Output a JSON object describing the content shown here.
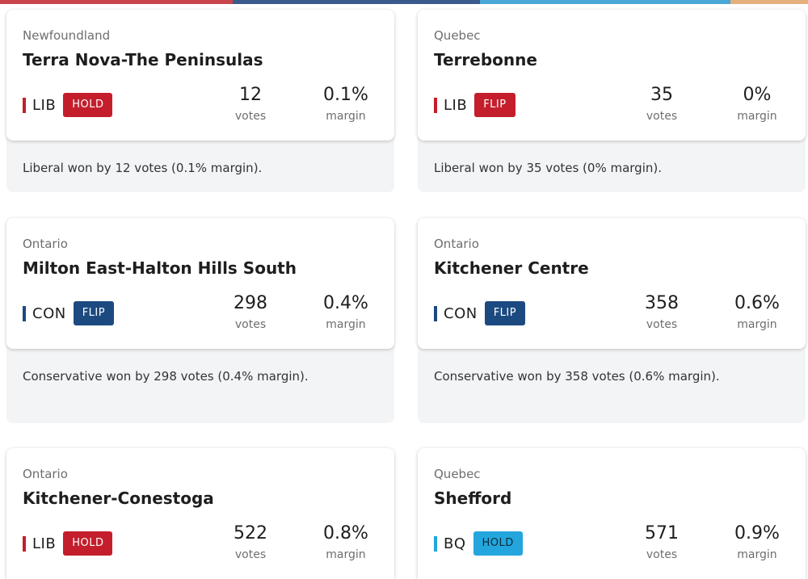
{
  "top_bar_colors": [
    "#c9434b",
    "#3a5a8c",
    "#48a7d6",
    "#e4b07d"
  ],
  "party_colors": {
    "LIB": "#c41e2c",
    "CON": "#1c4a80",
    "BQ": "#23a6dd"
  },
  "badge_text_colors": {
    "LIB": "#ffffff",
    "CON": "#ffffff",
    "BQ": "#0b2a3a"
  },
  "ridings": [
    {
      "province": "Newfoundland",
      "name": "Terra Nova-The Peninsulas",
      "party": "LIB",
      "status": "HOLD",
      "votes": "12",
      "votes_label": "votes",
      "margin": "0.1%",
      "margin_label": "margin",
      "summary": "Liberal won by 12 votes (0.1% margin)."
    },
    {
      "province": "Quebec",
      "name": "Terrebonne",
      "party": "LIB",
      "status": "FLIP",
      "votes": "35",
      "votes_label": "votes",
      "margin": "0%",
      "margin_label": "margin",
      "summary": "Liberal won by 35 votes (0% margin)."
    },
    {
      "province": "Ontario",
      "name": "Milton East-Halton Hills South",
      "party": "CON",
      "status": "FLIP",
      "votes": "298",
      "votes_label": "votes",
      "margin": "0.4%",
      "margin_label": "margin",
      "summary": "Conservative won by 298 votes (0.4% margin)."
    },
    {
      "province": "Ontario",
      "name": "Kitchener Centre",
      "party": "CON",
      "status": "FLIP",
      "votes": "358",
      "votes_label": "votes",
      "margin": "0.6%",
      "margin_label": "margin",
      "summary": "Conservative won by 358 votes (0.6% margin)."
    },
    {
      "province": "Ontario",
      "name": "Kitchener-Conestoga",
      "party": "LIB",
      "status": "HOLD",
      "votes": "522",
      "votes_label": "votes",
      "margin": "0.8%",
      "margin_label": "margin",
      "summary": ""
    },
    {
      "province": "Quebec",
      "name": "Shefford",
      "party": "BQ",
      "status": "HOLD",
      "votes": "571",
      "votes_label": "votes",
      "margin": "0.9%",
      "margin_label": "margin",
      "summary": ""
    }
  ]
}
